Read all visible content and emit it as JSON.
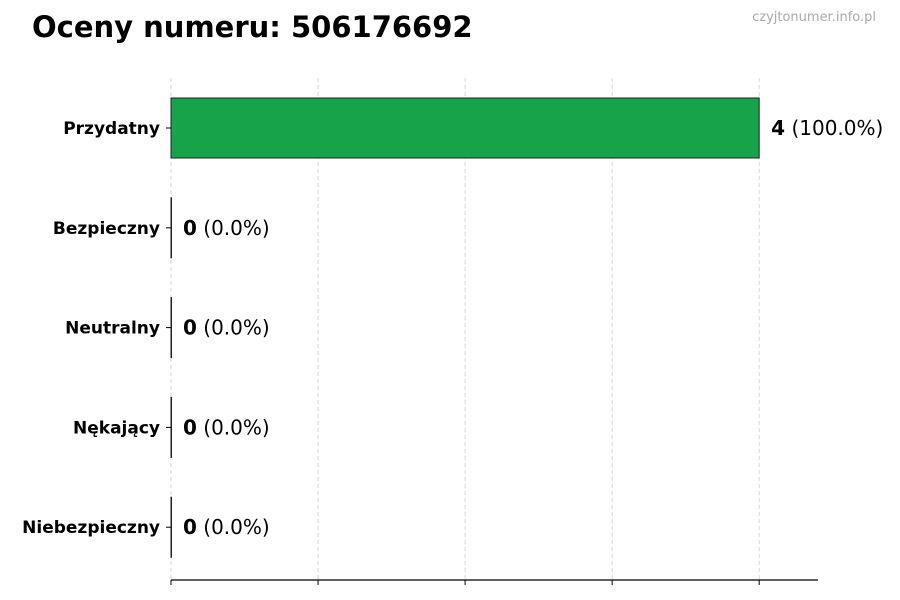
{
  "title": "Oceny numeru: 506176692",
  "watermark": "czyjtonumer.info.pl",
  "chart_data": {
    "type": "bar",
    "orientation": "horizontal",
    "title": "Oceny numeru: 506176692",
    "categories": [
      "Przydatny",
      "Bezpieczny",
      "Neutralny",
      "Nękający",
      "Niebezpieczny"
    ],
    "values": [
      4,
      0,
      0,
      0,
      0
    ],
    "value_labels": [
      {
        "count": "4",
        "percent": "(100.0%)"
      },
      {
        "count": "0",
        "percent": "(0.0%)"
      },
      {
        "count": "0",
        "percent": "(0.0%)"
      },
      {
        "count": "0",
        "percent": "(0.0%)"
      },
      {
        "count": "0",
        "percent": "(0.0%)"
      }
    ],
    "colors": [
      "#17a34a",
      "#17a34a",
      "#17a34a",
      "#17a34a",
      "#17a34a"
    ],
    "xlabel": "",
    "ylabel": "",
    "xlim": [
      0,
      4.4
    ],
    "xticks": [
      0,
      1,
      2,
      3,
      4
    ],
    "grid": "x, dashed",
    "legend": "none"
  }
}
